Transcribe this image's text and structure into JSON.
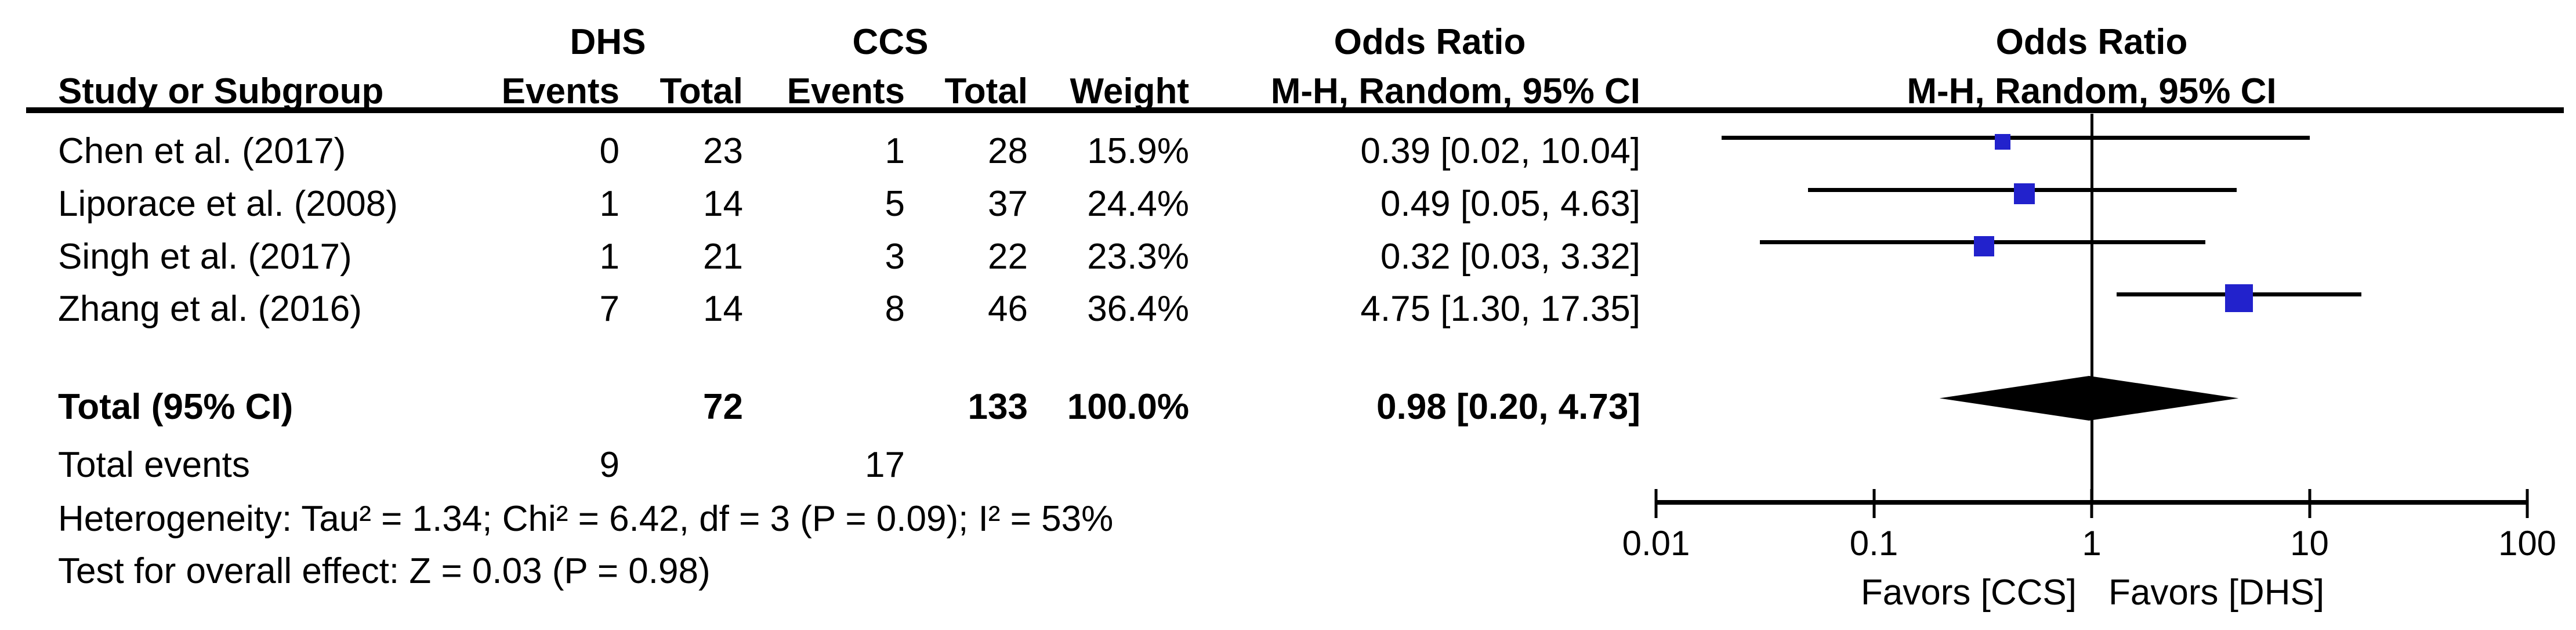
{
  "header": {
    "group1": "DHS",
    "group2": "CCS",
    "study": "Study or Subgroup",
    "events": "Events",
    "total": "Total",
    "weight": "Weight",
    "or_title": "Odds Ratio",
    "or_subtitle": "M-H, Random, 95% CI",
    "plot_title": "Odds Ratio",
    "plot_subtitle": "M-H, Random, 95% CI"
  },
  "rows": [
    {
      "study": "Chen et al. (2017)",
      "dhs_events": "0",
      "dhs_total": "23",
      "ccs_events": "1",
      "ccs_total": "28",
      "weight": "15.9%",
      "or_ci": "0.39 [0.02, 10.04]"
    },
    {
      "study": "Liporace et al. (2008)",
      "dhs_events": "1",
      "dhs_total": "14",
      "ccs_events": "5",
      "ccs_total": "37",
      "weight": "24.4%",
      "or_ci": "0.49 [0.05, 4.63]"
    },
    {
      "study": "Singh et al. (2017)",
      "dhs_events": "1",
      "dhs_total": "21",
      "ccs_events": "3",
      "ccs_total": "22",
      "weight": "23.3%",
      "or_ci": "0.32 [0.03, 3.32]"
    },
    {
      "study": "Zhang et al. (2016)",
      "dhs_events": "7",
      "dhs_total": "14",
      "ccs_events": "8",
      "ccs_total": "46",
      "weight": "36.4%",
      "or_ci": "4.75 [1.30, 17.35]"
    }
  ],
  "totals": {
    "label": "Total (95% CI)",
    "dhs_total": "72",
    "ccs_total": "133",
    "weight": "100.0%",
    "or_ci": "0.98 [0.20, 4.73]"
  },
  "total_events": {
    "label": "Total events",
    "dhs": "9",
    "ccs": "17"
  },
  "footnotes": {
    "heterogeneity": "Heterogeneity: Tau² = 1.34; Chi² = 6.42, df = 3 (P = 0.09); I² = 53%",
    "overall": "Test for overall effect: Z = 0.03 (P = 0.98)"
  },
  "chart_data": {
    "type": "forest",
    "effect_measure": "Odds Ratio",
    "method": "M-H, Random, 95% CI",
    "x_scale": "log10",
    "x_range": [
      0.01,
      100
    ],
    "tick_values": [
      0.01,
      0.1,
      1,
      10,
      100
    ],
    "tick_labels": [
      "0.01",
      "0.1",
      "1",
      "10",
      "100"
    ],
    "favors_left": "Favors [CCS]",
    "favors_right": "Favors [DHS]",
    "marker_color": "#2222CC",
    "line_color": "#000000",
    "studies": [
      {
        "name": "Chen et al. (2017)",
        "or": 0.39,
        "ci_low": 0.02,
        "ci_high": 10.04,
        "weight_pct": 15.9
      },
      {
        "name": "Liporace et al. (2008)",
        "or": 0.49,
        "ci_low": 0.05,
        "ci_high": 4.63,
        "weight_pct": 24.4
      },
      {
        "name": "Singh et al. (2017)",
        "or": 0.32,
        "ci_low": 0.03,
        "ci_high": 3.32,
        "weight_pct": 23.3
      },
      {
        "name": "Zhang et al. (2016)",
        "or": 4.75,
        "ci_low": 1.3,
        "ci_high": 17.35,
        "weight_pct": 36.4
      }
    ],
    "total": {
      "or": 0.98,
      "ci_low": 0.2,
      "ci_high": 4.73,
      "weight_pct": 100.0
    }
  }
}
